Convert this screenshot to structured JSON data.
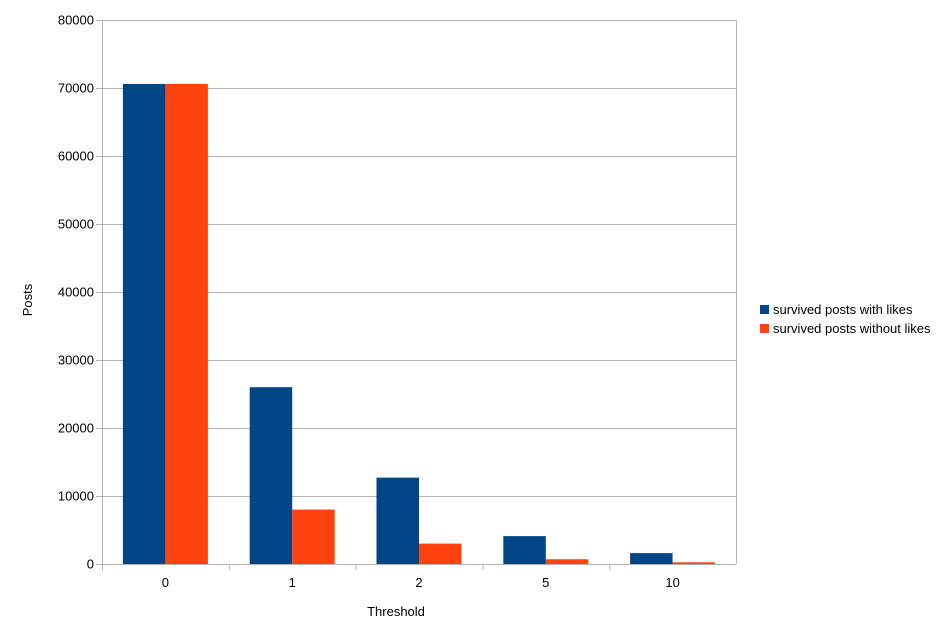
{
  "chart_data": {
    "type": "bar",
    "categories": [
      "0",
      "1",
      "2",
      "5",
      "10"
    ],
    "series": [
      {
        "name": "survived posts with likes",
        "color": "#004586",
        "values": [
          70600,
          26000,
          12700,
          4100,
          1600
        ]
      },
      {
        "name": "survived posts without likes",
        "color": "#ff420e",
        "values": [
          70600,
          8000,
          3000,
          700,
          250
        ]
      }
    ],
    "xlabel": "Threshold",
    "ylabel": "Posts",
    "ylim": [
      0,
      80000
    ],
    "yticks": [
      "0",
      "10000",
      "20000",
      "30000",
      "40000",
      "50000",
      "60000",
      "70000",
      "80000"
    ],
    "grid": true,
    "legend_position": "right"
  }
}
